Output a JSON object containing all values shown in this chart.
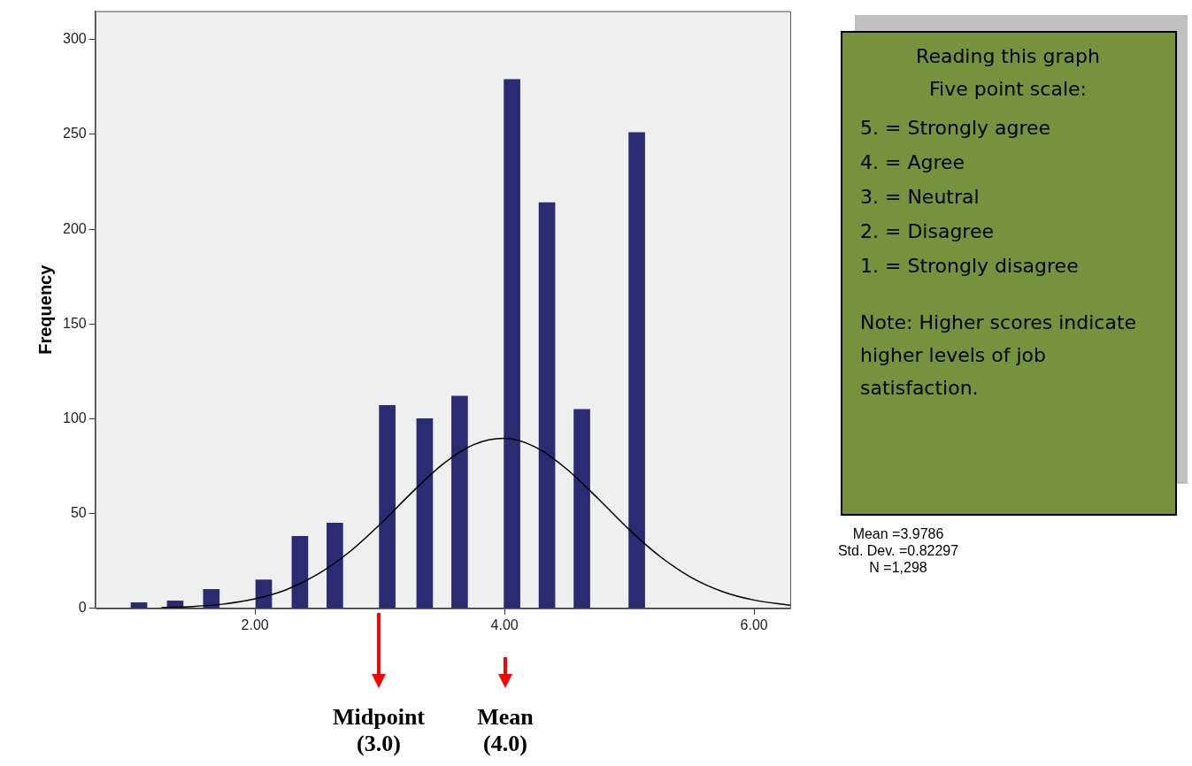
{
  "chart_data": {
    "type": "bar",
    "ylabel": "Frequency",
    "series": [
      {
        "color": "#2b2a72",
        "x": [
          1.07,
          1.36,
          1.65,
          2.07,
          2.36,
          2.64,
          3.06,
          3.36,
          3.64,
          4.06,
          4.34,
          4.62,
          5.06
        ],
        "values": [
          3,
          4,
          10,
          15,
          38,
          45,
          107,
          100,
          112,
          279,
          214,
          105,
          251
        ]
      },
      {
        "type": "line",
        "color": "#000000",
        "x": [
          1.25,
          1.5,
          1.75,
          2.0,
          2.25,
          2.5,
          2.75,
          3.0,
          3.25,
          3.5,
          3.75,
          4.0,
          4.25,
          4.5,
          4.75,
          5.0,
          5.25,
          5.5,
          5.75,
          6.0,
          6.29
        ],
        "values": [
          0.4,
          1,
          2.3,
          5,
          9.8,
          17.9,
          29.4,
          44.2,
          60.6,
          75.8,
          86.3,
          89.7,
          85,
          73.4,
          57.9,
          41.5,
          27.2,
          16.2,
          8.8,
          4.4,
          1.7
        ]
      }
    ],
    "xlim": [
      0.72,
      6.29
    ],
    "xticks": [
      {
        "value": 2,
        "label": "2.00"
      },
      {
        "value": 4,
        "label": "4.00"
      },
      {
        "value": 6,
        "label": "6.00"
      }
    ],
    "ylim": [
      0,
      315
    ],
    "yticks": [
      0,
      50,
      100,
      150,
      200,
      250,
      300
    ],
    "grid": false,
    "legend": false,
    "marker": "none",
    "annotations": [
      "Reading this graph",
      "Five point scale:",
      "5. = Strongly agree",
      "4. = Agree",
      "3. = Neutral",
      "2. = Disagree",
      "1. = Strongly disagree",
      "Note: Higher scores indicate higher levels of job satisfaction.",
      "Mean =3.9786",
      "Std. Dev. =0.82297",
      "N =1,298",
      "Midpoint (3.0)",
      "Mean (4.0)"
    ]
  }
}
